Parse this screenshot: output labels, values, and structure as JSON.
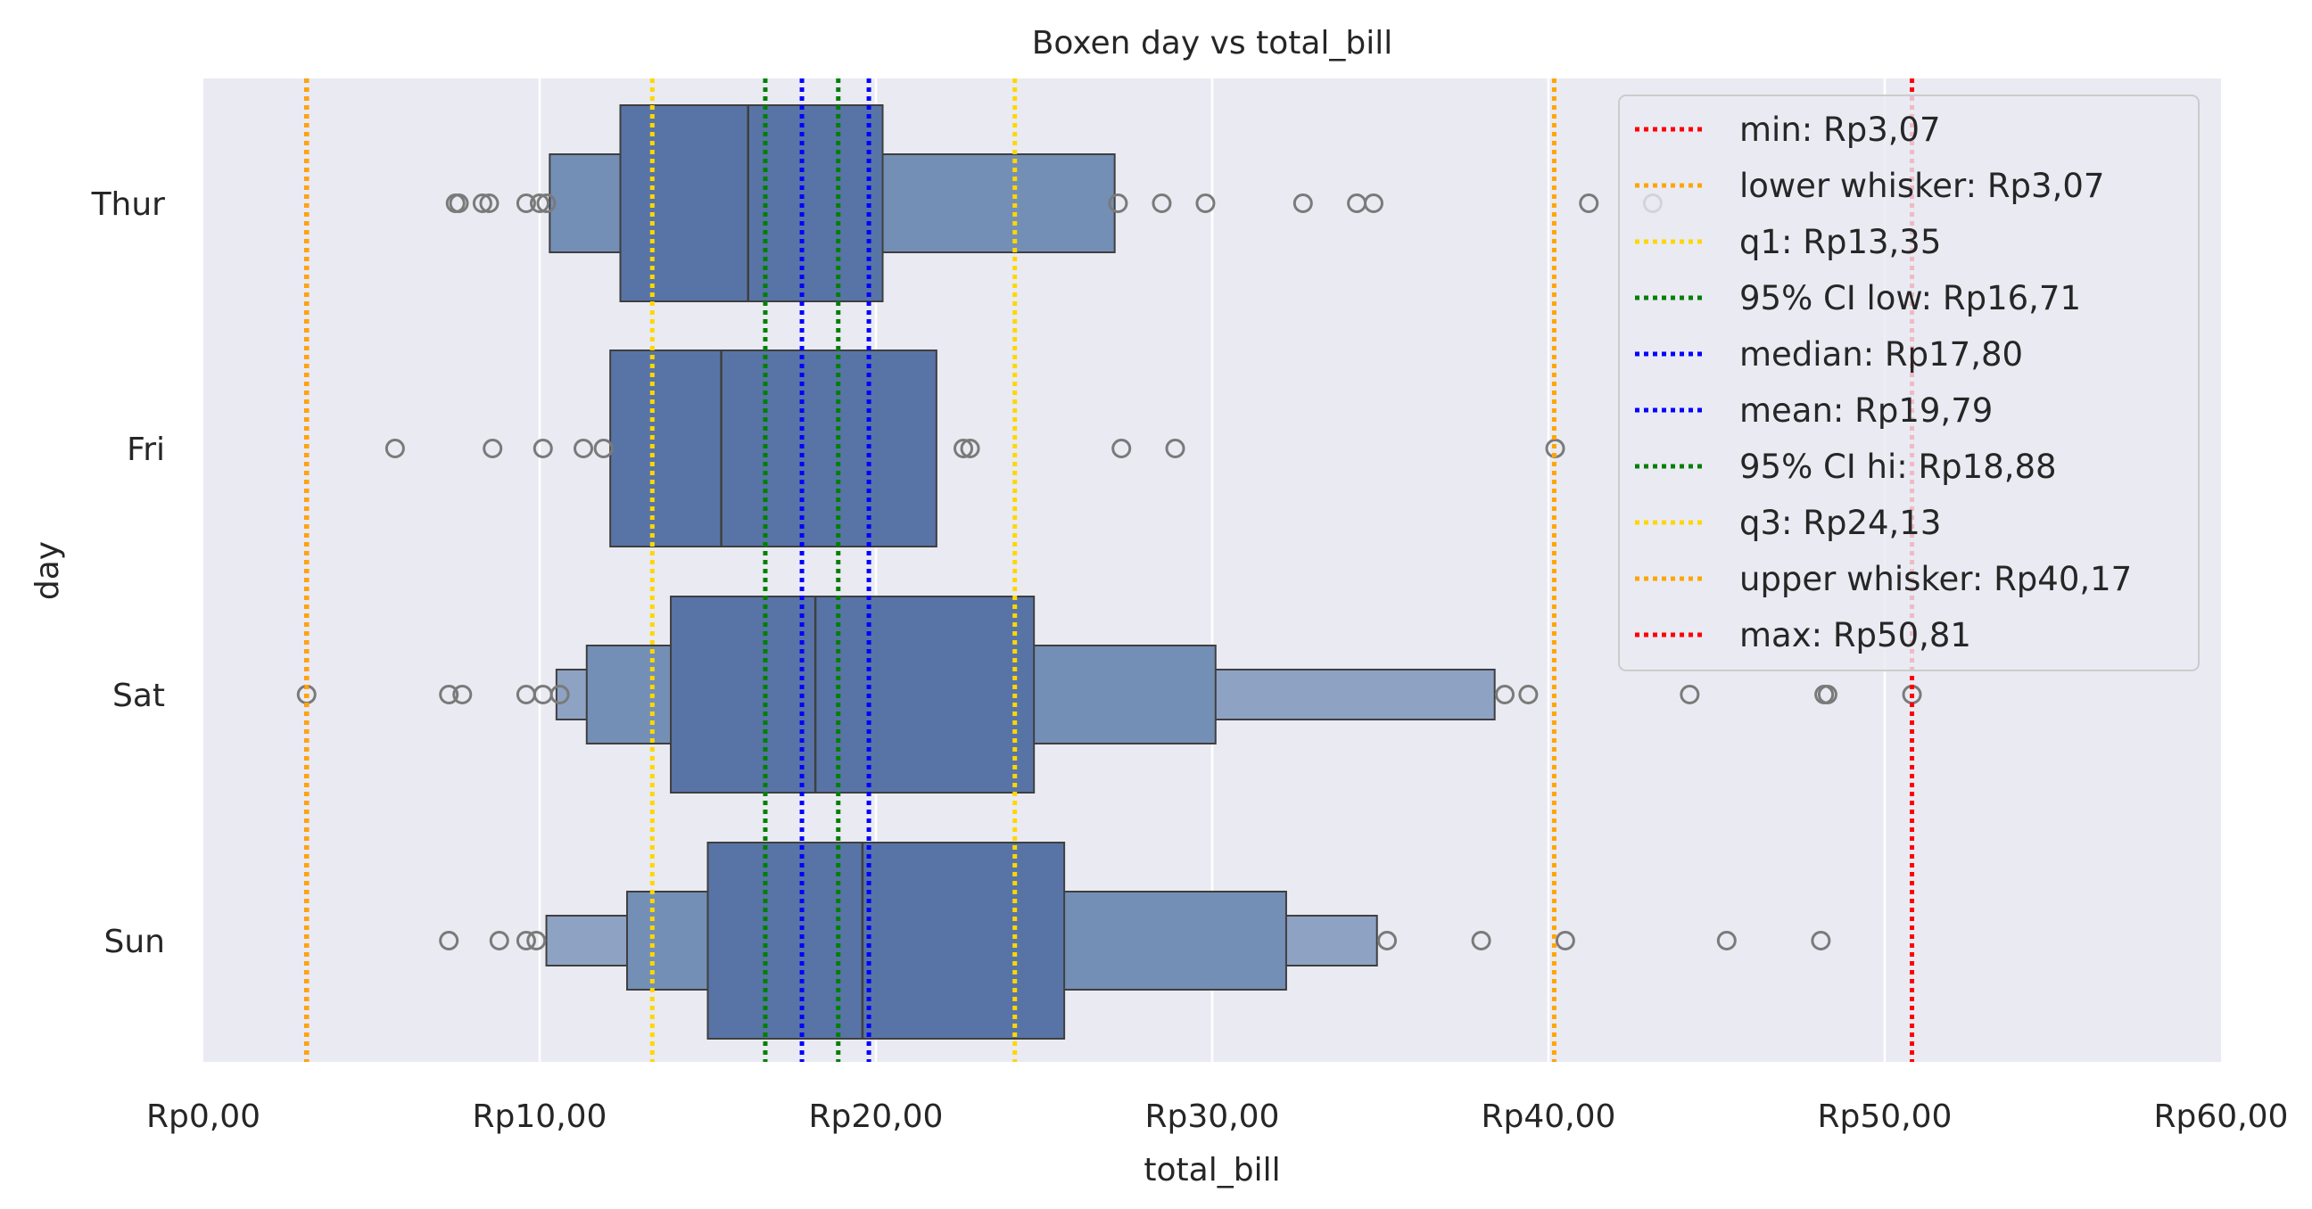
{
  "chart_data": {
    "type": "boxen",
    "title": "Boxen day vs total_bill",
    "xlabel": "total_bill",
    "ylabel": "day",
    "xlim": [
      0,
      60
    ],
    "x_ticks": [
      0,
      10,
      20,
      30,
      40,
      50,
      60
    ],
    "x_tick_labels": [
      "Rp0,00",
      "Rp10,00",
      "Rp20,00",
      "Rp30,00",
      "Rp40,00",
      "Rp50,00",
      "Rp60,00"
    ],
    "categories": [
      "Thur",
      "Fri",
      "Sat",
      "Sun"
    ],
    "grid": true,
    "legend_position": "top-right",
    "colors": {
      "background": "#eaeaf2",
      "grid": "#ffffff",
      "box": "#4c72b0",
      "outlier": "#7a7a7a",
      "edge": "#3f3f3f"
    },
    "series": [
      {
        "category": "Thur",
        "median": 16.2,
        "levels": [
          {
            "lo": 12.4,
            "hi": 20.2
          },
          {
            "lo": 10.3,
            "hi": 27.1
          }
        ],
        "outliers": [
          7.5,
          7.6,
          8.3,
          8.5,
          9.6,
          10.0,
          10.2,
          27.2,
          28.5,
          29.8,
          32.7,
          34.3,
          34.8,
          41.2,
          43.1
        ]
      },
      {
        "category": "Fri",
        "median": 15.4,
        "levels": [
          {
            "lo": 12.1,
            "hi": 21.8
          }
        ],
        "outliers": [
          5.7,
          8.6,
          10.1,
          11.3,
          11.9,
          22.6,
          22.8,
          27.3,
          28.9,
          40.2
        ]
      },
      {
        "category": "Sat",
        "median": 18.2,
        "levels": [
          {
            "lo": 13.9,
            "hi": 24.7
          },
          {
            "lo": 11.4,
            "hi": 30.1
          },
          {
            "lo": 10.5,
            "hi": 38.4
          }
        ],
        "outliers": [
          3.07,
          7.3,
          7.7,
          9.6,
          10.1,
          10.6,
          38.7,
          39.4,
          44.2,
          48.2,
          48.3,
          50.81
        ]
      },
      {
        "category": "Sun",
        "median": 19.6,
        "levels": [
          {
            "lo": 15.0,
            "hi": 25.6
          },
          {
            "lo": 12.6,
            "hi": 32.2
          },
          {
            "lo": 10.2,
            "hi": 34.9
          }
        ],
        "outliers": [
          7.3,
          8.8,
          9.6,
          9.9,
          35.2,
          38.0,
          40.5,
          45.3,
          48.1
        ]
      }
    ],
    "reference_lines": [
      {
        "label": "min: Rp3,07",
        "value": 3.07,
        "color": "#ff0000"
      },
      {
        "label": "lower whisker: Rp3,07",
        "value": 3.07,
        "color": "#ffa500"
      },
      {
        "label": "q1: Rp13,35",
        "value": 13.35,
        "color": "#ffd700"
      },
      {
        "label": "95% CI low: Rp16,71",
        "value": 16.71,
        "color": "#008000"
      },
      {
        "label": "median: Rp17,80",
        "value": 17.8,
        "color": "#0000ff"
      },
      {
        "label": "mean: Rp19,79",
        "value": 19.79,
        "color": "#0000ff"
      },
      {
        "label": "95% CI hi: Rp18,88",
        "value": 18.88,
        "color": "#008000"
      },
      {
        "label": "q3: Rp24,13",
        "value": 24.13,
        "color": "#ffd700"
      },
      {
        "label": "upper whisker: Rp40,17",
        "value": 40.17,
        "color": "#ffa500"
      },
      {
        "label": "max: Rp50,81",
        "value": 50.81,
        "color": "#ff0000"
      }
    ]
  }
}
